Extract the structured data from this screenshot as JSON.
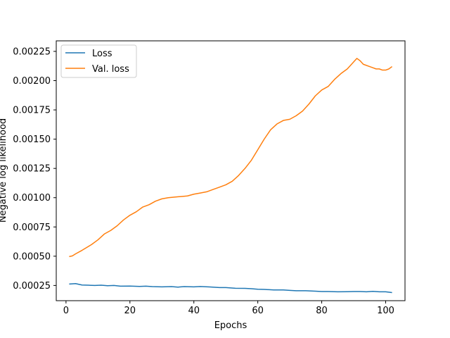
{
  "chart_data": {
    "type": "line",
    "title": "",
    "xlabel": "Epochs",
    "ylabel": "Negative log likelihood",
    "xlim": [
      -3.05,
      106.05
    ],
    "ylim": [
      0.00012,
      0.00234
    ],
    "xticks": [
      0,
      20,
      40,
      60,
      80,
      100
    ],
    "xtick_labels": [
      "0",
      "20",
      "40",
      "60",
      "80",
      "100"
    ],
    "yticks": [
      0.00025,
      0.0005,
      0.00075,
      0.001,
      0.00125,
      0.0015,
      0.00175,
      0.002,
      0.00225
    ],
    "ytick_labels": [
      "0.00025",
      "0.00050",
      "0.00075",
      "0.00100",
      "0.00125",
      "0.00150",
      "0.00175",
      "0.00200",
      "0.00225"
    ],
    "grid": false,
    "legend_position": "top-left",
    "series": [
      {
        "name": "Loss",
        "color": "#1f77b4",
        "points": [
          [
            1,
            0.000262
          ],
          [
            3,
            0.000266
          ],
          [
            5,
            0.000254
          ],
          [
            7,
            0.000252
          ],
          [
            9,
            0.00025
          ],
          [
            11,
            0.000252
          ],
          [
            13,
            0.000248
          ],
          [
            15,
            0.00025
          ],
          [
            17,
            0.000244
          ],
          [
            20,
            0.000245
          ],
          [
            23,
            0.000242
          ],
          [
            25,
            0.000244
          ],
          [
            27,
            0.00024
          ],
          [
            30,
            0.000238
          ],
          [
            33,
            0.00024
          ],
          [
            35,
            0.000236
          ],
          [
            37,
            0.00024
          ],
          [
            40,
            0.000238
          ],
          [
            42,
            0.000241
          ],
          [
            45,
            0.000237
          ],
          [
            48,
            0.000232
          ],
          [
            50,
            0.000232
          ],
          [
            53,
            0.000226
          ],
          [
            56,
            0.000225
          ],
          [
            58,
            0.000222
          ],
          [
            60,
            0.000218
          ],
          [
            62,
            0.000216
          ],
          [
            65,
            0.000212
          ],
          [
            68,
            0.000212
          ],
          [
            70,
            0.000208
          ],
          [
            72,
            0.000205
          ],
          [
            75,
            0.000205
          ],
          [
            78,
            0.000201
          ],
          [
            80,
            0.000198
          ],
          [
            82,
            0.000198
          ],
          [
            85,
            0.000196
          ],
          [
            88,
            0.000197
          ],
          [
            90,
            0.000198
          ],
          [
            92,
            0.000198
          ],
          [
            94,
            0.000196
          ],
          [
            96,
            0.0002
          ],
          [
            98,
            0.000196
          ],
          [
            100,
            0.000196
          ],
          [
            102,
            0.000189
          ]
        ]
      },
      {
        "name": "Val. loss",
        "color": "#ff7f0e",
        "points": [
          [
            1,
            0.000497
          ],
          [
            2,
            0.000503
          ],
          [
            3,
            0.00052
          ],
          [
            5,
            0.00055
          ],
          [
            8,
            0.0006
          ],
          [
            10,
            0.00064
          ],
          [
            12,
            0.00069
          ],
          [
            14,
            0.00072
          ],
          [
            16,
            0.00076
          ],
          [
            18,
            0.00081
          ],
          [
            20,
            0.00085
          ],
          [
            22,
            0.00088
          ],
          [
            24,
            0.00092
          ],
          [
            26,
            0.00094
          ],
          [
            28,
            0.00097
          ],
          [
            30,
            0.00099
          ],
          [
            32,
            0.001
          ],
          [
            34,
            0.001005
          ],
          [
            36,
            0.00101
          ],
          [
            38,
            0.001015
          ],
          [
            40,
            0.00103
          ],
          [
            42,
            0.00104
          ],
          [
            44,
            0.00105
          ],
          [
            46,
            0.00107
          ],
          [
            48,
            0.00109
          ],
          [
            50,
            0.00111
          ],
          [
            52,
            0.00114
          ],
          [
            54,
            0.00119
          ],
          [
            56,
            0.00125
          ],
          [
            58,
            0.00132
          ],
          [
            60,
            0.00141
          ],
          [
            62,
            0.0015
          ],
          [
            64,
            0.00158
          ],
          [
            66,
            0.00163
          ],
          [
            68,
            0.00166
          ],
          [
            70,
            0.00167
          ],
          [
            72,
            0.0017
          ],
          [
            74,
            0.00174
          ],
          [
            76,
            0.0018
          ],
          [
            78,
            0.00187
          ],
          [
            80,
            0.00192
          ],
          [
            82,
            0.00195
          ],
          [
            84,
            0.00201
          ],
          [
            86,
            0.00206
          ],
          [
            88,
            0.0021
          ],
          [
            90,
            0.00216
          ],
          [
            91,
            0.00219
          ],
          [
            92,
            0.00217
          ],
          [
            93,
            0.00214
          ],
          [
            95,
            0.00212
          ],
          [
            96,
            0.00211
          ],
          [
            97,
            0.0021
          ],
          [
            98,
            0.0021
          ],
          [
            99,
            0.00209
          ],
          [
            100,
            0.00209
          ],
          [
            101,
            0.0021
          ],
          [
            102,
            0.00212
          ]
        ]
      }
    ]
  }
}
